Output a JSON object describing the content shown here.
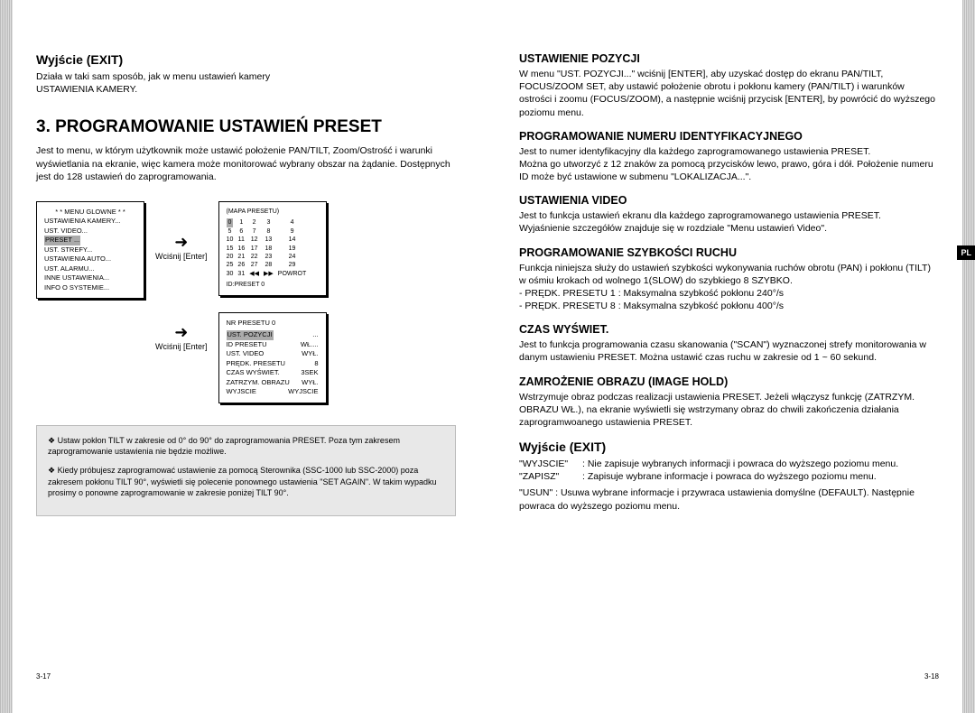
{
  "left": {
    "h_exit": "Wyjście (EXIT)",
    "exit_body1": "Działa w taki sam sposób, jak w menu ustawień kamery",
    "exit_body2": "USTAWIENIA KAMERY.",
    "h_main": "3. PROGRAMOWANIE USTAWIEŃ PRESET",
    "main_body": "Jest to menu, w którym użytkownik może ustawić położenie PAN/TILT, Zoom/Ostrość i warunki wyświetlania na ekranie, więc kamera może monitorować wybrany obszar na żądanie. Dostępnych jest do 128 ustawień do zaprogramowania.",
    "enter_label": "Wciśnij [Enter]",
    "enter_label2": "Wciśnij [Enter]",
    "menu1": {
      "title": "* *   MENU GLOWNE   * *",
      "items": [
        "USTAWIENIA KAMERY...",
        "UST. VIDEO...",
        "PRESET ...",
        "UST. STREFY...",
        "USTAWIENIA AUTO...",
        "UST. ALARMU...",
        "INNE USTAWIENIA...",
        "INFO O SYSTEMIE..."
      ],
      "hl_index": 2
    },
    "menu2": {
      "title": "(MAPA PRESETU)",
      "rows": [
        [
          "0",
          "1",
          "2",
          "3",
          "4"
        ],
        [
          "5",
          "6",
          "7",
          "8",
          "9"
        ],
        [
          "10",
          "11",
          "12",
          "13",
          "14"
        ],
        [
          "15",
          "16",
          "17",
          "18",
          "19"
        ],
        [
          "20",
          "21",
          "22",
          "23",
          "24"
        ],
        [
          "25",
          "26",
          "27",
          "28",
          "29"
        ],
        [
          "30",
          "31",
          "◀◀",
          "▶▶",
          "POWROT"
        ]
      ],
      "footer": "ID:PRESET 0"
    },
    "menu3": {
      "title": "NR PRESETU 0",
      "rows": [
        [
          "UST. POZYCJI",
          "..."
        ],
        [
          "ID PRESETU",
          "WŁ...."
        ],
        [
          "UST. VIDEO",
          "WYŁ."
        ],
        [
          "PRĘDK. PRESETU",
          "8"
        ],
        [
          "CZAS WYŚWIET.",
          "3SEK"
        ],
        [
          "ZATRZYM. OBRAZU",
          "WYŁ."
        ],
        [
          "",
          ""
        ],
        [
          "WYJSCIE",
          "WYJSCIE"
        ]
      ],
      "hl_index": 0
    },
    "note1": "❖ Ustaw pokłon TILT w zakresie od 0° do 90° do zaprogramowania PRESET. Poza tym zakresem zaprogramowanie ustawienia nie będzie możliwe.",
    "note2": "❖ Kiedy próbujesz zaprogramować ustawienie za pomocą Sterownika (SSC-1000 lub SSC-2000) poza zakresem pokłonu TILT 90°, wyświetli się polecenie ponownego ustawienia \"SET AGAIN\". W takim wypadku prosimy o ponowne zaprogramowanie w zakresie poniżej TILT 90°.",
    "page_num": "3-17"
  },
  "right": {
    "tab": "PL",
    "sections": [
      {
        "h": "USTAWIENIE POZYCJI",
        "p": "W menu \"UST. POZYCJI...\" wciśnij [ENTER], aby uzyskać dostęp do ekranu PAN/TILT, FOCUS/ZOOM SET, aby ustawić położenie obrotu i pokłonu kamery (PAN/TILT) i warunków ostrości i zoomu (FOCUS/ZOOM), a następnie wciśnij przycisk [ENTER], by powrócić do wyższego poziomu menu."
      },
      {
        "h": "PROGRAMOWANIE NUMERU IDENTYFIKACYJNEGO",
        "p": "Jest to numer identyfikacyjny dla każdego zaprogramowanego ustawienia PRESET.\nMożna go utworzyć z 12 znaków za pomocą przycisków lewo, prawo, góra i dół. Położenie numeru ID może być ustawione w submenu \"LOKALIZACJA...\"."
      },
      {
        "h": "USTAWIENIA VIDEO",
        "p": "Jest to funkcja ustawień ekranu dla każdego zaprogramowanego ustawienia PRESET.\nWyjaśnienie szczegółów znajduje się w rozdziale \"Menu ustawień Video\"."
      },
      {
        "h": "PROGRAMOWANIE SZYBKOŚCI RUCHU",
        "p": "Funkcja niniejsza służy do ustawień szybkości wykonywania ruchów obrotu (PAN) i pokłonu (TILT) w ośmiu krokach od wolnego 1(SLOW) do szybkiego 8 SZYBKO.\n- PRĘDK. PRESETU 1 : Maksymalna szybkość pokłonu 240°/s\n- PRĘDK. PRESETU 8 : Maksymalna szybkość pokłonu 400°/s"
      },
      {
        "h": "CZAS WYŚWIET.",
        "p": "Jest to funkcja programowania czasu skanowania (\"SCAN\") wyznaczonej strefy monitorowania w danym ustawieniu PRESET. Można ustawić czas ruchu w zakresie od 1 ~ 60 sekund."
      },
      {
        "h": "ZAMROŻENIE OBRAZU (IMAGE HOLD)",
        "p": "Wstrzymuje obraz podczas realizacji ustawienia PRESET. Jeżeli włączysz funkcję (ZATRZYM. OBRAZU WŁ.), na ekranie wyświetli się wstrzymany obraz do chwili zakończenia działania zaprogramwoanego ustawienia PRESET."
      }
    ],
    "exit_h": "Wyjście (EXIT)",
    "exit_defs": [
      {
        "k": "\"WYJSCIE\"",
        "v": ": Nie zapisuje wybranych informacji i powraca do wyższego poziomu menu."
      },
      {
        "k": "\"ZAPISZ\"",
        "v": ": Zapisuje wybrane informacje i powraca do wyższego poziomu menu."
      }
    ],
    "exit_usun": "\"USUN\" : Usuwa wybrane informacje i przywraca ustawienia domyślne (DEFAULT). Następnie powraca do wyższego poziomu menu.",
    "page_num": "3-18"
  }
}
